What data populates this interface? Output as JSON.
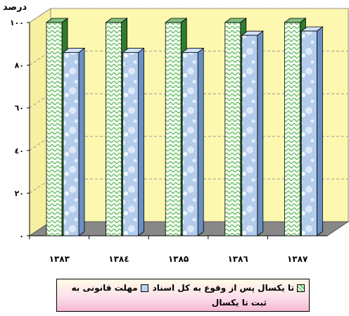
{
  "chart_data": {
    "type": "bar",
    "ylabel": "درصد",
    "ylim": [
      0,
      100
    ],
    "yticks": [
      "۰",
      "۲۰",
      "٤۰",
      "٦۰",
      "۸۰",
      "۱۰۰"
    ],
    "categories": [
      "۱۳۸۳",
      "۱۳۸٤",
      "۱۳۸۵",
      "۱۳۸٦",
      "۱۳۸۷"
    ],
    "series": [
      {
        "name": "تا یکسال پس از وقوع به کل اسناد",
        "values": [
          100,
          100,
          100,
          100,
          100
        ],
        "color": "#6ec26e"
      },
      {
        "name": "مهلت قانونی به ثبت تا یکسال",
        "values": [
          86,
          86,
          86,
          94,
          96
        ],
        "color": "#b9d2f0"
      }
    ],
    "wall_color": "#fdf8b0",
    "grid": true,
    "legend_position": "bottom"
  },
  "legend": {
    "item1": "تا یکسال پس از وقوع به کل اسناد",
    "item2_line1": "مهلت قانونی به",
    "item2_line2": "ثبت تا یکسال"
  }
}
